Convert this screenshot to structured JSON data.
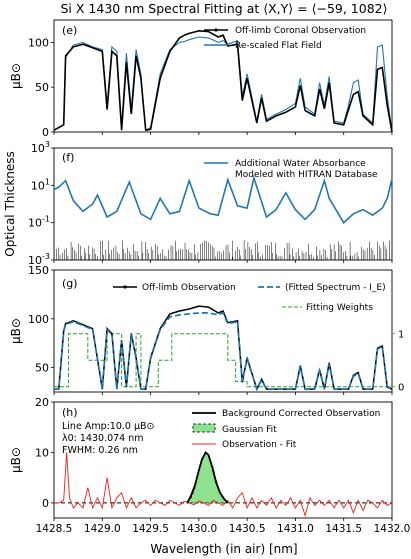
{
  "title": "Si X 1430 nm Spectral Fitting at ⟨X,Y⟩ = ⟨−59, 1082⟩",
  "xlabel": "Wavelength (in air) [nm]",
  "xticks": [
    "1428.5",
    "1429.0",
    "1429.5",
    "1430.0",
    "1430.5",
    "1431.0",
    "1431.5",
    "1432.0"
  ],
  "colors": {
    "observation": "#000000",
    "flat": "#1f77b4",
    "fit": "#1f77b4",
    "weights": "#2ca02c",
    "resid": "#e8211b",
    "gaussian": "#8ee28e"
  },
  "chart_data": [
    {
      "panel": "(e)",
      "type": "line",
      "ylabel": "μB⊙",
      "ylim": [
        0,
        125
      ],
      "yticks": [
        "0",
        "50",
        "100"
      ],
      "legend": [
        "Off-limb Coronal Observation",
        "Re-scaled Flat Field"
      ],
      "x": [
        1428.5,
        1428.6,
        1428.62,
        1428.7,
        1428.8,
        1428.9,
        1429.0,
        1429.05,
        1429.1,
        1429.15,
        1429.2,
        1429.25,
        1429.3,
        1429.35,
        1429.4,
        1429.45,
        1429.5,
        1429.6,
        1429.7,
        1429.8,
        1429.85,
        1429.9,
        1430.0,
        1430.1,
        1430.2,
        1430.25,
        1430.3,
        1430.4,
        1430.45,
        1430.5,
        1430.6,
        1430.65,
        1430.7,
        1430.8,
        1430.9,
        1431.0,
        1431.05,
        1431.1,
        1431.2,
        1431.25,
        1431.3,
        1431.35,
        1431.4,
        1431.5,
        1431.55,
        1431.6,
        1431.65,
        1431.7,
        1431.8,
        1431.85,
        1431.9,
        1431.95,
        1432.0
      ],
      "series": [
        {
          "name": "Off-limb Coronal Observation",
          "values": [
            2,
            8,
            85,
            95,
            98,
            94,
            90,
            25,
            90,
            85,
            2,
            78,
            20,
            85,
            60,
            2,
            3,
            60,
            90,
            105,
            108,
            110,
            113,
            112,
            106,
            108,
            96,
            98,
            35,
            60,
            10,
            38,
            12,
            18,
            22,
            28,
            52,
            24,
            18,
            48,
            26,
            55,
            10,
            8,
            25,
            42,
            45,
            18,
            8,
            70,
            72,
            30,
            0
          ]
        },
        {
          "name": "Re-scaled Flat Field",
          "values": [
            2,
            8,
            83,
            97,
            100,
            95,
            92,
            30,
            95,
            90,
            5,
            88,
            25,
            92,
            65,
            2,
            5,
            65,
            92,
            100,
            101,
            103,
            106,
            105,
            100,
            102,
            98,
            102,
            40,
            65,
            12,
            42,
            14,
            20,
            25,
            32,
            60,
            28,
            20,
            55,
            30,
            62,
            12,
            10,
            30,
            55,
            58,
            20,
            10,
            95,
            97,
            40,
            0
          ]
        }
      ]
    },
    {
      "panel": "(f)",
      "type": "line",
      "ylabel": "Optical Thickness",
      "yscale": "log",
      "ylim": [
        0.001,
        1000
      ],
      "yticks": [
        "10^-3",
        "10^-1",
        "10^1",
        "10^3"
      ],
      "legend": [
        "Additional Water Absorbance Modeled with HITRAN Database"
      ],
      "x": [
        1428.5,
        1428.55,
        1428.62,
        1428.7,
        1428.8,
        1428.9,
        1428.95,
        1429.05,
        1429.15,
        1429.28,
        1429.4,
        1429.5,
        1429.6,
        1429.7,
        1429.8,
        1429.9,
        1430.0,
        1430.12,
        1430.2,
        1430.3,
        1430.4,
        1430.5,
        1430.57,
        1430.7,
        1430.8,
        1430.9,
        1431.0,
        1431.1,
        1431.2,
        1431.3,
        1431.35,
        1431.5,
        1431.6,
        1431.7,
        1431.8,
        1431.9,
        1431.95,
        1432.0
      ],
      "series": [
        {
          "name": "Additional Water Absorbance Modeled with HITRAN Database",
          "values": [
            6,
            8,
            18,
            1.5,
            0.4,
            1,
            3,
            0.2,
            0.4,
            15,
            0.3,
            0.15,
            2,
            0.3,
            0.4,
            18,
            0.6,
            0.3,
            0.25,
            20,
            0.8,
            0.6,
            25,
            0.2,
            0.5,
            4,
            0.5,
            0.15,
            0.5,
            18,
            2,
            0.1,
            0.3,
            0.5,
            0.25,
            0.6,
            2,
            22
          ]
        }
      ]
    },
    {
      "panel": "(g)",
      "type": "line",
      "ylabel": "μB⊙",
      "ylim": [
        25,
        150
      ],
      "yticks": [
        "50",
        "100",
        "150"
      ],
      "y2ticks": [
        "0",
        "1"
      ],
      "legend": [
        "Off-limb Observation",
        "(Fitted Spectrum - I_E)",
        "Fitting Weights"
      ],
      "x": [
        1428.5,
        1428.55,
        1428.6,
        1428.62,
        1428.7,
        1428.8,
        1428.9,
        1429.0,
        1429.05,
        1429.1,
        1429.15,
        1429.2,
        1429.25,
        1429.3,
        1429.35,
        1429.4,
        1429.45,
        1429.5,
        1429.6,
        1429.7,
        1429.8,
        1429.9,
        1430.0,
        1430.1,
        1430.2,
        1430.25,
        1430.3,
        1430.4,
        1430.45,
        1430.5,
        1430.6,
        1430.65,
        1430.7,
        1430.8,
        1430.9,
        1431.0,
        1431.05,
        1431.1,
        1431.2,
        1431.25,
        1431.3,
        1431.35,
        1431.4,
        1431.5,
        1431.55,
        1431.6,
        1431.65,
        1431.7,
        1431.8,
        1431.85,
        1431.9,
        1431.95,
        1432.0
      ],
      "series": [
        {
          "name": "Off-limb Observation",
          "values": [
            28,
            28,
            88,
            95,
            98,
            94,
            90,
            28,
            90,
            85,
            28,
            78,
            30,
            85,
            60,
            28,
            28,
            60,
            90,
            105,
            108,
            110,
            113,
            112,
            106,
            108,
            96,
            98,
            35,
            60,
            28,
            38,
            28,
            28,
            28,
            28,
            52,
            28,
            28,
            48,
            28,
            55,
            28,
            28,
            28,
            42,
            45,
            28,
            28,
            70,
            72,
            30,
            28
          ]
        },
        {
          "name": "(Fitted Spectrum - I_E)",
          "values": [
            28,
            28,
            87,
            94,
            97,
            93,
            89,
            29,
            89,
            84,
            28,
            77,
            31,
            84,
            59,
            28,
            28,
            59,
            89,
            102,
            104,
            105,
            106,
            106,
            104,
            106,
            95,
            97,
            36,
            59,
            28,
            37,
            28,
            28,
            28,
            28,
            51,
            28,
            28,
            47,
            28,
            54,
            28,
            28,
            28,
            41,
            44,
            28,
            28,
            69,
            71,
            31,
            28
          ]
        }
      ],
      "weights": {
        "x": [
          1428.5,
          1428.65,
          1428.65,
          1428.85,
          1428.85,
          1429.05,
          1429.05,
          1429.2,
          1429.2,
          1429.35,
          1429.35,
          1429.4,
          1429.4,
          1429.58,
          1429.58,
          1429.72,
          1429.72,
          1430.3,
          1430.3,
          1430.38,
          1430.38,
          1430.5,
          1430.5,
          1432.0
        ],
        "values": [
          0,
          0,
          1,
          1,
          0.5,
          0.5,
          1,
          1,
          0,
          0,
          1,
          1,
          0,
          0,
          0.5,
          0.5,
          1,
          1,
          0.5,
          0.5,
          0.1,
          0.1,
          0,
          0
        ]
      }
    },
    {
      "panel": "(h)",
      "type": "line",
      "ylabel": "μB⊙",
      "ylim": [
        -3,
        20
      ],
      "yticks": [
        "0",
        "10",
        "20"
      ],
      "legend": [
        "Background Corrected Observation",
        "Gaussian Fit",
        "Observation - Fit"
      ],
      "annotations": [
        "Line Amp:10.0 μB⊙",
        "λ0: 1430.074 nm",
        "FWHM: 0.26 nm"
      ],
      "x": [
        1429.88,
        1429.92,
        1429.96,
        1430.0,
        1430.03,
        1430.07,
        1430.1,
        1430.14,
        1430.18,
        1430.22,
        1430.26,
        1430.3
      ],
      "series": [
        {
          "name": "Background Corrected Observation",
          "values": [
            0,
            1.5,
            3.5,
            6.5,
            8.5,
            10,
            9.5,
            7,
            4,
            2,
            0.8,
            0
          ]
        },
        {
          "name": "Gaussian Fit",
          "values": [
            0,
            1,
            3,
            6.5,
            8.8,
            10,
            9.5,
            7.5,
            4.5,
            2,
            0.7,
            0
          ]
        }
      ],
      "residual": {
        "x": [
          1428.5,
          1428.55,
          1428.6,
          1428.63,
          1428.66,
          1428.7,
          1428.75,
          1428.8,
          1428.85,
          1428.9,
          1428.95,
          1429.0,
          1429.05,
          1429.1,
          1429.15,
          1429.2,
          1429.25,
          1429.3,
          1429.35,
          1429.4,
          1429.45,
          1429.5,
          1429.55,
          1429.6,
          1429.65,
          1429.7,
          1429.75,
          1429.8,
          1429.85,
          1429.9,
          1429.95,
          1430.0,
          1430.05,
          1430.1,
          1430.15,
          1430.2,
          1430.25,
          1430.3,
          1430.35,
          1430.4,
          1430.45,
          1430.5,
          1430.55,
          1430.6,
          1430.65,
          1430.7,
          1430.75,
          1430.8,
          1430.85,
          1430.9,
          1430.95,
          1431.0,
          1431.05,
          1431.1,
          1431.15,
          1431.2,
          1431.25,
          1431.3,
          1431.35,
          1431.4,
          1431.45,
          1431.5,
          1431.55,
          1431.6,
          1431.65,
          1431.7,
          1431.75,
          1431.8,
          1431.85,
          1431.9,
          1431.95,
          1432.0
        ],
        "values": [
          0,
          0,
          0.5,
          10,
          1,
          -1,
          0,
          -1,
          3,
          -1,
          1,
          -1,
          5,
          -1,
          1,
          2,
          -1,
          1,
          -1,
          0,
          0.5,
          -0.5,
          0.5,
          0,
          -0.5,
          0.5,
          0,
          -0.5,
          0.3,
          0,
          -0.4,
          0.4,
          0,
          -0.5,
          0.5,
          0,
          -0.5,
          0.5,
          -1,
          1,
          2,
          -1,
          1,
          -1,
          0.5,
          -0.5,
          1,
          -1,
          0.5,
          -0.5,
          1,
          -1,
          0.5,
          -2.5,
          1,
          -0.5,
          0.5,
          -0.5,
          0.5,
          -1,
          0.5,
          -1,
          0.5,
          -2,
          0.5,
          -1.5,
          0.5,
          0,
          -1,
          0.5,
          -0.5,
          0
        ]
      }
    }
  ]
}
